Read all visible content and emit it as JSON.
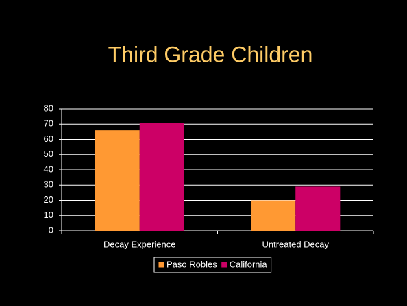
{
  "chart_data": {
    "type": "bar",
    "title": "Third Grade Children",
    "categories": [
      "Decay Experience",
      "Untreated Decay"
    ],
    "series": [
      {
        "name": "Paso Robles",
        "color": "#ff9933",
        "values": [
          66,
          20
        ]
      },
      {
        "name": "California",
        "color": "#cc0066",
        "values": [
          71,
          29
        ]
      }
    ],
    "ylim": [
      0,
      80
    ],
    "yticks": [
      0,
      10,
      20,
      30,
      40,
      50,
      60,
      70,
      80
    ],
    "grid": true,
    "legend": "bottom"
  }
}
